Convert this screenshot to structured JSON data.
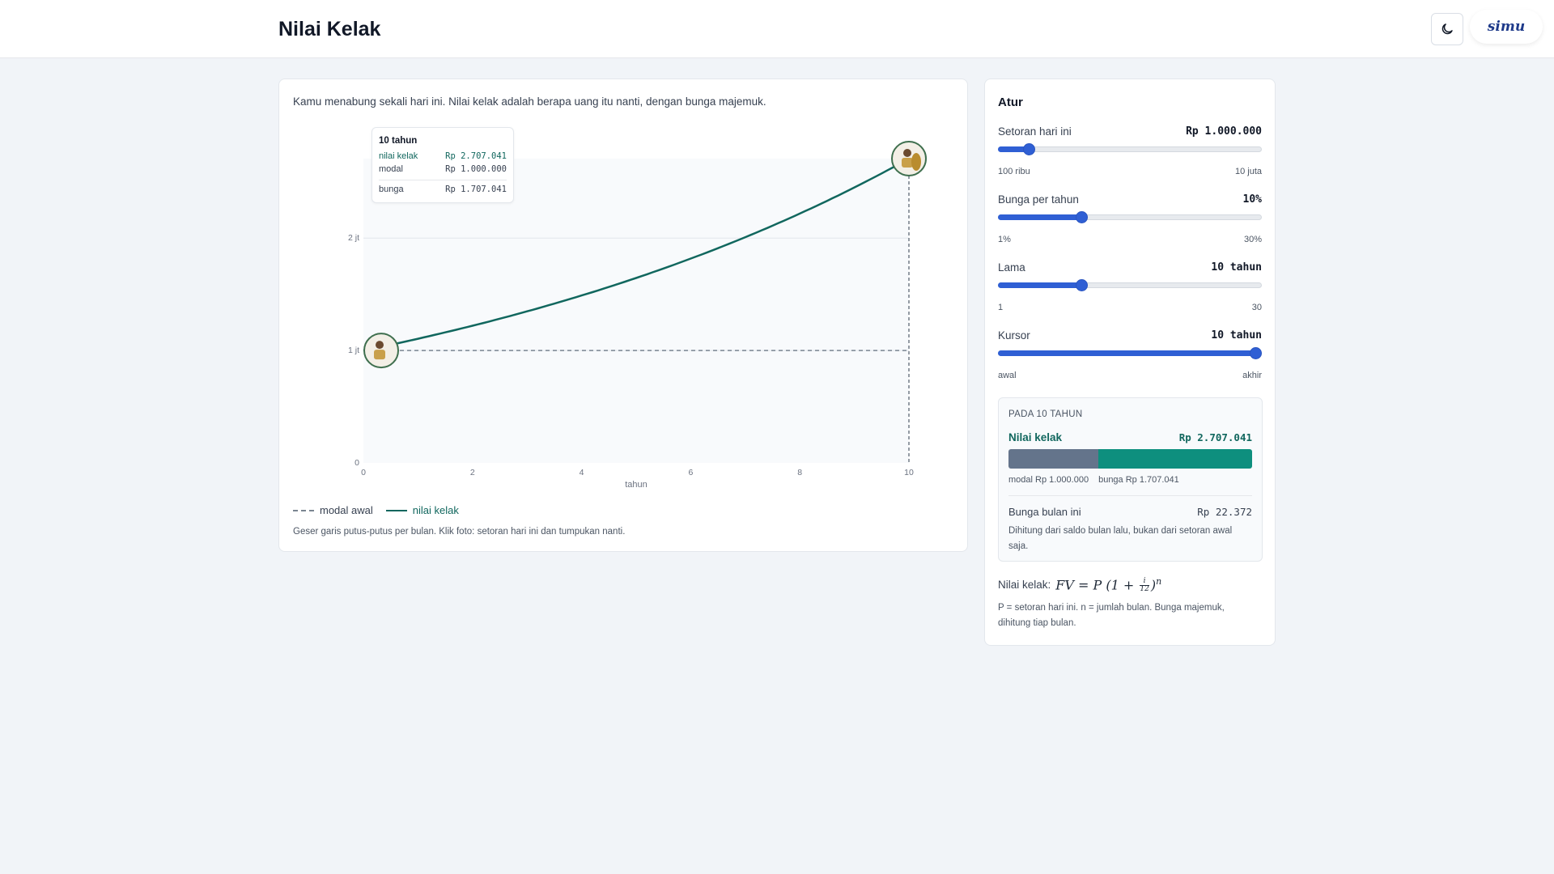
{
  "header": {
    "title": "Nilai Kelak",
    "logo_text": "simu",
    "theme_toggle_icon": "moon-icon"
  },
  "chart_panel": {
    "intro": "Kamu menabung sekali hari ini. Nilai kelak adalah berapa uang itu nanti, dengan bunga majemuk.",
    "legend": {
      "modal": "modal awal",
      "nilai": "nilai kelak"
    },
    "hint": "Geser garis putus-putus per bulan. Klik foto: setoran hari ini dan tumpukan nanti.",
    "tooltip": {
      "title": "10 tahun",
      "nilai_label": "nilai kelak",
      "nilai_value": "Rp 2.707.041",
      "modal_label": "modal",
      "modal_value": "Rp 1.000.000",
      "bunga_label": "bunga",
      "bunga_value": "Rp 1.707.041"
    }
  },
  "chart_data": {
    "type": "line",
    "xlabel": "tahun",
    "ylabel": "",
    "xlim": [
      0,
      10
    ],
    "ylim": [
      0,
      2707041
    ],
    "x_ticks": [
      0,
      2,
      4,
      6,
      8,
      10
    ],
    "x_tick_labels": [
      "0",
      "2",
      "4",
      "6",
      "8",
      "10"
    ],
    "y_ticks": [
      0,
      1000000,
      2000000
    ],
    "y_tick_labels": [
      "0",
      "1 jt",
      "2 jt"
    ],
    "cursor_x": 10,
    "series": [
      {
        "name": "modal awal",
        "style": "dashed",
        "color": "#7a8591",
        "x": [
          0,
          10
        ],
        "y": [
          1000000,
          1000000
        ]
      },
      {
        "name": "nilai kelak",
        "style": "solid",
        "color": "#11675e",
        "x": [
          0,
          1,
          2,
          3,
          4,
          5,
          6,
          7,
          8,
          9,
          10
        ],
        "y": [
          1000000,
          1104713,
          1220391,
          1348182,
          1489354,
          1645309,
          1817594,
          2007920,
          2218176,
          2450448,
          2707041
        ]
      }
    ]
  },
  "settings": {
    "title": "Atur",
    "sliders": [
      {
        "label": "Setoran hari ini",
        "value": "Rp 1.000.000",
        "min": "100 ribu",
        "max": "10 juta",
        "fraction": 0.1
      },
      {
        "label": "Bunga per tahun",
        "value": "10%",
        "min": "1%",
        "max": "30%",
        "fraction": 0.31
      },
      {
        "label": "Lama",
        "value": "10 tahun",
        "min": "1",
        "max": "30",
        "fraction": 0.31
      },
      {
        "label": "Kursor",
        "value": "10 tahun",
        "min": "awal",
        "max": "akhir",
        "fraction": 1.0
      }
    ],
    "result": {
      "heading": "PADA 10 TAHUN",
      "fv_label": "Nilai kelak",
      "fv_value": "Rp 2.707.041",
      "modal_fraction": 0.369,
      "modal_text": "modal Rp 1.000.000",
      "bunga_text": "bunga Rp 1.707.041",
      "monthly_label": "Bunga bulan ini",
      "monthly_value": "Rp 22.372",
      "monthly_note": "Dihitung dari saldo bulan lalu, bukan dari setoran awal saja."
    },
    "formula_label": "Nilai kelak:",
    "formula_note": "P = setoran hari ini. n = jumlah bulan. Bunga majemuk, dihitung tiap bulan.",
    "colors": {
      "accent": "#2f5fd4",
      "teal": "#11675e",
      "modal_bar": "#64748b",
      "bunga_bar": "#0e8f7e"
    }
  }
}
